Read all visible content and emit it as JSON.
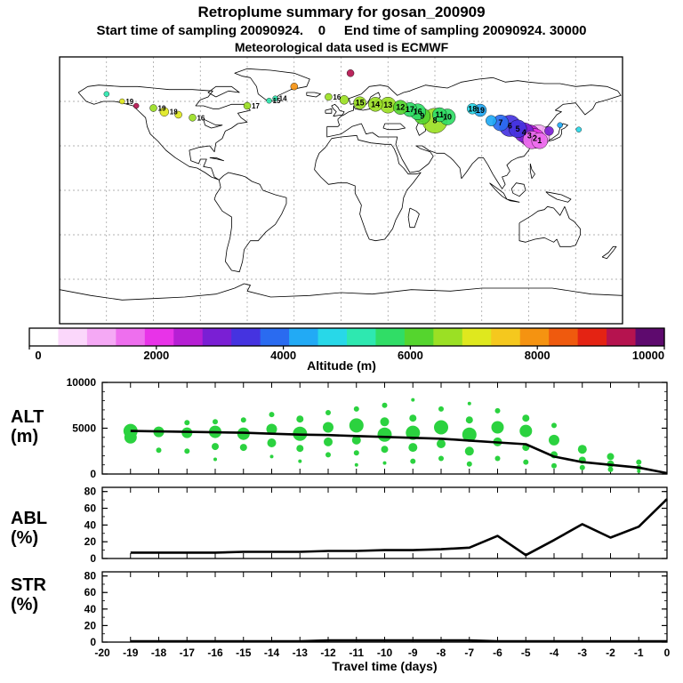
{
  "header": {
    "title": "Retroplume summary for gosan_200909",
    "subtitle": "Start time of sampling 20090924.    0     End time of sampling 20090924. 30000",
    "met_line": "Meteorological data used is ECMWF"
  },
  "panel_labels": {
    "alt1": "ALT",
    "alt2": "(m)",
    "abl1": "ABL",
    "abl2": "(%)",
    "str1": "STR",
    "str2": "(%)"
  },
  "chart_data": {
    "type": "multi-panel-trajectory",
    "colors": {
      "bubble": "#2bd23f",
      "line": "#000000",
      "grid": "#999999",
      "coast": "#000000"
    },
    "colorbar": {
      "label": "Altitude (m)",
      "min": 0,
      "max": 10000,
      "ticks": [
        0,
        2000,
        4000,
        6000,
        8000,
        10000
      ],
      "stops": [
        "#ffffff",
        "#fbd7fb",
        "#f5a9f5",
        "#ee6fee",
        "#e833e8",
        "#b61fd4",
        "#7a1fd4",
        "#4533e0",
        "#2a6bf0",
        "#22aaf5",
        "#28d8e8",
        "#2ee8b0",
        "#30dd66",
        "#55d52e",
        "#9be024",
        "#dfe81e",
        "#f5c81e",
        "#f59311",
        "#ef5a0e",
        "#e42313",
        "#b5134f",
        "#5e0a6e"
      ]
    },
    "map": {
      "grid_deg": 30,
      "lon_range": [
        -180,
        180
      ],
      "lat_range": [
        -90,
        90
      ],
      "points": [
        {
          "lon": 127,
          "lat": 33.5,
          "alt": 1400,
          "r": 9,
          "label": "1"
        },
        {
          "lon": 124,
          "lat": 35,
          "alt": 1900,
          "r": 11,
          "label": "2"
        },
        {
          "lon": 120.5,
          "lat": 37,
          "alt": 2400,
          "r": 12,
          "label": "3"
        },
        {
          "lon": 126,
          "lat": 36.5,
          "alt": 1100,
          "r": 13,
          "label": ""
        },
        {
          "lon": 122,
          "lat": 34,
          "alt": 1700,
          "r": 10,
          "label": ""
        },
        {
          "lon": 117,
          "lat": 39,
          "alt": 2800,
          "r": 11,
          "label": "4"
        },
        {
          "lon": 113,
          "lat": 41.5,
          "alt": 3200,
          "r": 10,
          "label": "5"
        },
        {
          "lon": 108,
          "lat": 43.5,
          "alt": 3500,
          "r": 12,
          "label": "6"
        },
        {
          "lon": 102,
          "lat": 45.5,
          "alt": 3900,
          "r": 9,
          "label": "7"
        },
        {
          "lon": 96,
          "lat": 47,
          "alt": 4200,
          "r": 6,
          "label": ""
        },
        {
          "lon": 89,
          "lat": 54,
          "alt": 4500,
          "r": 7,
          "label": "19"
        },
        {
          "lon": 84,
          "lat": 55,
          "alt": 4700,
          "r": 6,
          "label": "18"
        },
        {
          "lon": 60,
          "lat": 47,
          "alt": 6500,
          "r": 14,
          "label": "8"
        },
        {
          "lon": 68,
          "lat": 49.5,
          "alt": 5600,
          "r": 9,
          "label": "10"
        },
        {
          "lon": 63,
          "lat": 51,
          "alt": 5800,
          "r": 8,
          "label": "11"
        },
        {
          "lon": 52,
          "lat": 50,
          "alt": 6000,
          "r": 9,
          "label": "9"
        },
        {
          "lon": 49,
          "lat": 53,
          "alt": 5600,
          "r": 9,
          "label": "16"
        },
        {
          "lon": 44,
          "lat": 54.5,
          "alt": 5800,
          "r": 8,
          "label": "17"
        },
        {
          "lon": 38,
          "lat": 56,
          "alt": 6200,
          "r": 8,
          "label": "12"
        },
        {
          "lon": 30,
          "lat": 57.5,
          "alt": 6400,
          "r": 9,
          "label": "13"
        },
        {
          "lon": 22,
          "lat": 58,
          "alt": 6700,
          "r": 8,
          "label": "14"
        },
        {
          "lon": 12,
          "lat": 59,
          "alt": 6800,
          "r": 7,
          "label": "15"
        },
        {
          "lon": 2,
          "lat": 61,
          "alt": 6500,
          "r": 5,
          "label": ""
        },
        {
          "lon": -8,
          "lat": 63,
          "alt": 6600,
          "r": 4,
          "label": "16"
        },
        {
          "lon": -30,
          "lat": 70,
          "alt": 7800,
          "r": 4,
          "label": ""
        },
        {
          "lon": 6,
          "lat": 79,
          "alt": 9300,
          "r": 4,
          "label": ""
        },
        {
          "lon": -42,
          "lat": 62,
          "alt": 5200,
          "r": 3,
          "label": "14"
        },
        {
          "lon": -46,
          "lat": 60.5,
          "alt": 5000,
          "r": 3,
          "label": "15"
        },
        {
          "lon": -60,
          "lat": 57,
          "alt": 6400,
          "r": 4,
          "label": "17"
        },
        {
          "lon": -113,
          "lat": 53,
          "alt": 7000,
          "r": 5,
          "label": "18"
        },
        {
          "lon": -120,
          "lat": 55.5,
          "alt": 6800,
          "r": 4,
          "label": "19"
        },
        {
          "lon": -104,
          "lat": 51,
          "alt": 7100,
          "r": 4,
          "label": ""
        },
        {
          "lon": -131,
          "lat": 57,
          "alt": 9400,
          "r": 3,
          "label": ""
        },
        {
          "lon": -95,
          "lat": 49,
          "alt": 6600,
          "r": 4,
          "label": "16"
        },
        {
          "lon": -140,
          "lat": 60,
          "alt": 6900,
          "r": 3,
          "label": "19"
        },
        {
          "lon": -150,
          "lat": 65,
          "alt": 5000,
          "r": 3,
          "label": ""
        },
        {
          "lon": 140,
          "lat": 44,
          "alt": 4300,
          "r": 3,
          "label": ""
        },
        {
          "lon": 152,
          "lat": 41,
          "alt": 4800,
          "r": 3,
          "label": ""
        },
        {
          "lon": 133,
          "lat": 40,
          "alt": 2900,
          "r": 5,
          "label": ""
        }
      ]
    },
    "data_days": [
      -19,
      -18,
      -17,
      -16,
      -15,
      -14,
      -13,
      -12,
      -11,
      -10,
      -9,
      -8,
      -7,
      -6,
      -5,
      -4,
      -3,
      -2,
      -1,
      0
    ],
    "alt": {
      "ylim": [
        0,
        10000
      ],
      "yticks": [
        0,
        5000,
        10000
      ],
      "mean": [
        4700,
        4650,
        4600,
        4550,
        4500,
        4400,
        4300,
        4250,
        4150,
        4050,
        3950,
        3850,
        3650,
        3450,
        3250,
        1900,
        1300,
        1000,
        700,
        100
      ],
      "bubbles": [
        {
          "d": -19,
          "a": 4700,
          "r": 8
        },
        {
          "d": -19,
          "a": 4000,
          "r": 7
        },
        {
          "d": -18,
          "a": 4600,
          "r": 6
        },
        {
          "d": -18,
          "a": 2600,
          "r": 3
        },
        {
          "d": -17,
          "a": 5600,
          "r": 3
        },
        {
          "d": -17,
          "a": 4500,
          "r": 6
        },
        {
          "d": -17,
          "a": 2500,
          "r": 3
        },
        {
          "d": -16,
          "a": 5700,
          "r": 3
        },
        {
          "d": -16,
          "a": 4600,
          "r": 7
        },
        {
          "d": -16,
          "a": 3000,
          "r": 4
        },
        {
          "d": -16,
          "a": 1600,
          "r": 2
        },
        {
          "d": -15,
          "a": 5900,
          "r": 3
        },
        {
          "d": -15,
          "a": 4400,
          "r": 7
        },
        {
          "d": -15,
          "a": 2900,
          "r": 4
        },
        {
          "d": -14,
          "a": 6500,
          "r": 3
        },
        {
          "d": -14,
          "a": 4900,
          "r": 6
        },
        {
          "d": -14,
          "a": 3400,
          "r": 5
        },
        {
          "d": -14,
          "a": 1900,
          "r": 2
        },
        {
          "d": -13,
          "a": 6000,
          "r": 4
        },
        {
          "d": -13,
          "a": 4400,
          "r": 8
        },
        {
          "d": -13,
          "a": 2800,
          "r": 4
        },
        {
          "d": -13,
          "a": 1400,
          "r": 2
        },
        {
          "d": -12,
          "a": 6700,
          "r": 3
        },
        {
          "d": -12,
          "a": 5100,
          "r": 6
        },
        {
          "d": -12,
          "a": 3500,
          "r": 5
        },
        {
          "d": -12,
          "a": 2100,
          "r": 3
        },
        {
          "d": -11,
          "a": 7100,
          "r": 3
        },
        {
          "d": -11,
          "a": 5300,
          "r": 8
        },
        {
          "d": -11,
          "a": 3700,
          "r": 5
        },
        {
          "d": -11,
          "a": 2300,
          "r": 3
        },
        {
          "d": -11,
          "a": 1000,
          "r": 2
        },
        {
          "d": -10,
          "a": 7500,
          "r": 3
        },
        {
          "d": -10,
          "a": 5700,
          "r": 5
        },
        {
          "d": -10,
          "a": 4300,
          "r": 8
        },
        {
          "d": -10,
          "a": 2700,
          "r": 4
        },
        {
          "d": -10,
          "a": 1200,
          "r": 2
        },
        {
          "d": -9,
          "a": 8100,
          "r": 2
        },
        {
          "d": -9,
          "a": 6100,
          "r": 4
        },
        {
          "d": -9,
          "a": 4500,
          "r": 8
        },
        {
          "d": -9,
          "a": 2900,
          "r": 5
        },
        {
          "d": -9,
          "a": 1400,
          "r": 3
        },
        {
          "d": -8,
          "a": 7100,
          "r": 3
        },
        {
          "d": -8,
          "a": 5100,
          "r": 8
        },
        {
          "d": -8,
          "a": 3300,
          "r": 5
        },
        {
          "d": -8,
          "a": 1700,
          "r": 3
        },
        {
          "d": -7,
          "a": 7700,
          "r": 2
        },
        {
          "d": -7,
          "a": 5900,
          "r": 4
        },
        {
          "d": -7,
          "a": 4300,
          "r": 8
        },
        {
          "d": -7,
          "a": 2500,
          "r": 5
        },
        {
          "d": -7,
          "a": 1100,
          "r": 3
        },
        {
          "d": -6,
          "a": 6900,
          "r": 3
        },
        {
          "d": -6,
          "a": 5100,
          "r": 7
        },
        {
          "d": -6,
          "a": 3500,
          "r": 5
        },
        {
          "d": -6,
          "a": 1700,
          "r": 3
        },
        {
          "d": -5,
          "a": 6100,
          "r": 4
        },
        {
          "d": -5,
          "a": 4700,
          "r": 7
        },
        {
          "d": -5,
          "a": 2900,
          "r": 4
        },
        {
          "d": -5,
          "a": 1300,
          "r": 3
        },
        {
          "d": -4,
          "a": 5300,
          "r": 3
        },
        {
          "d": -4,
          "a": 3700,
          "r": 6
        },
        {
          "d": -4,
          "a": 2100,
          "r": 4
        },
        {
          "d": -4,
          "a": 900,
          "r": 3
        },
        {
          "d": -3,
          "a": 2700,
          "r": 5
        },
        {
          "d": -3,
          "a": 1500,
          "r": 4
        },
        {
          "d": -3,
          "a": 700,
          "r": 3
        },
        {
          "d": -2,
          "a": 1900,
          "r": 4
        },
        {
          "d": -2,
          "a": 1100,
          "r": 4
        },
        {
          "d": -2,
          "a": 500,
          "r": 3
        },
        {
          "d": -1,
          "a": 1300,
          "r": 3
        },
        {
          "d": -1,
          "a": 700,
          "r": 3
        },
        {
          "d": -1,
          "a": 300,
          "r": 2
        }
      ]
    },
    "abl": {
      "ylim": [
        0,
        85
      ],
      "yticks": [
        0,
        20,
        40,
        60,
        80
      ],
      "values": [
        7,
        7,
        7,
        7,
        8,
        8,
        8,
        9,
        9,
        10,
        10,
        11,
        13,
        27,
        4,
        22,
        41,
        25,
        38,
        71
      ]
    },
    "str": {
      "ylim": [
        0,
        85
      ],
      "yticks": [
        0,
        20,
        40,
        60,
        80
      ],
      "values": [
        1,
        1,
        1,
        1,
        1,
        1,
        1,
        2,
        2,
        2,
        2,
        2,
        2,
        1,
        1,
        1,
        1,
        1,
        1,
        1
      ]
    },
    "x_axis": {
      "label": "Travel time (days)",
      "ticks": [
        -20,
        -19,
        -18,
        -17,
        -16,
        -15,
        -14,
        -13,
        -12,
        -11,
        -10,
        -9,
        -8,
        -7,
        -6,
        -5,
        -4,
        -3,
        -2,
        -1,
        0
      ]
    }
  }
}
